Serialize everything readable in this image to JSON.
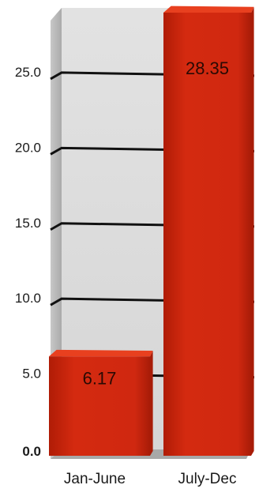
{
  "chart_data": {
    "type": "bar",
    "categories": [
      "Jan-June",
      "July-Dec"
    ],
    "values": [
      6.17,
      28.35
    ],
    "data_labels": [
      "6.17",
      "28.35"
    ],
    "y_ticks": [
      "0.0",
      "5.0",
      "10.0",
      "15.0",
      "20.0",
      "25.0"
    ],
    "y_tick_values": [
      0,
      5,
      10,
      15,
      20,
      25
    ],
    "ylim": [
      0,
      28.35
    ],
    "title": "",
    "xlabel": "",
    "ylabel": "",
    "grid": true,
    "legend": "none",
    "style": "3d",
    "colors": {
      "bar": "#d42a10",
      "bar_top": "#e8401f",
      "bar_side": "#a81c08",
      "back_wall": "#dcdcdc",
      "side_wall": "#b8b8b8",
      "floor": "#a8a8a8",
      "gridline": "#111111"
    }
  }
}
